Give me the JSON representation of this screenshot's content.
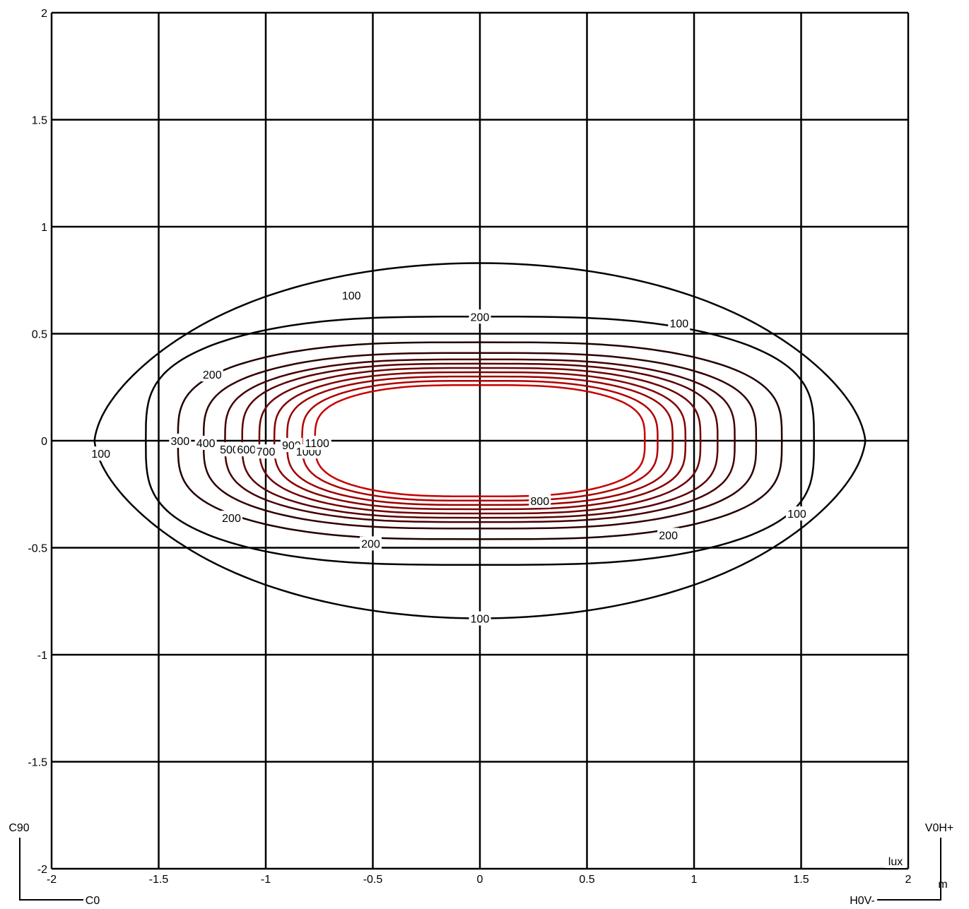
{
  "chart_data": {
    "type": "contour",
    "xlim": [
      -2,
      2
    ],
    "ylim": [
      -2,
      2
    ],
    "x_ticks": [
      -2,
      -1.5,
      -1,
      -0.5,
      0,
      0.5,
      1,
      1.5,
      2
    ],
    "y_ticks": [
      -2,
      -1.5,
      -1,
      -0.5,
      0,
      0.5,
      1,
      1.5,
      2
    ],
    "x_tick_labels": [
      "-2",
      "-1.5",
      "-1",
      "-0.5",
      "0",
      "0.5",
      "1",
      "1.5",
      "2"
    ],
    "y_tick_labels": [
      "-2",
      "-1.5",
      "-1",
      "-0.5",
      "0",
      "0.5",
      "1",
      "1.5",
      "2"
    ],
    "unit_label": "lux",
    "axis_unit": "m",
    "grid": true,
    "corner_labels": {
      "c90": "C90",
      "c0": "C0",
      "v0h": "V0H+",
      "h0v": "H0V-"
    },
    "contour_levels": [
      {
        "value": 100,
        "x_extent": 1.8,
        "y_extent": 0.83,
        "color": "#000000"
      },
      {
        "value": 200,
        "x_extent": 1.56,
        "y_extent": 0.58,
        "color": "#000000"
      },
      {
        "value": 300,
        "x_extent": 1.41,
        "y_extent": 0.46,
        "color": "#200000"
      },
      {
        "value": 400,
        "x_extent": 1.29,
        "y_extent": 0.41,
        "color": "#300000"
      },
      {
        "value": 500,
        "x_extent": 1.19,
        "y_extent": 0.38,
        "color": "#450000"
      },
      {
        "value": 600,
        "x_extent": 1.11,
        "y_extent": 0.36,
        "color": "#5a0000"
      },
      {
        "value": 700,
        "x_extent": 1.03,
        "y_extent": 0.34,
        "color": "#6e0000"
      },
      {
        "value": 800,
        "x_extent": 0.96,
        "y_extent": 0.32,
        "color": "#830000"
      },
      {
        "value": 900,
        "x_extent": 0.9,
        "y_extent": 0.3,
        "color": "#990000"
      },
      {
        "value": 1000,
        "x_extent": 0.83,
        "y_extent": 0.28,
        "color": "#b00000"
      },
      {
        "value": 1100,
        "x_extent": 0.77,
        "y_extent": 0.26,
        "color": "#c80000"
      }
    ],
    "contour_labels": [
      {
        "text": "100",
        "x": -0.6,
        "y": 0.68
      },
      {
        "text": "200",
        "x": 0.0,
        "y": 0.58
      },
      {
        "text": "100",
        "x": 0.93,
        "y": 0.55
      },
      {
        "text": "200",
        "x": -1.25,
        "y": 0.31
      },
      {
        "text": "300",
        "x": -1.4,
        "y": 0.0
      },
      {
        "text": "400",
        "x": -1.28,
        "y": -0.01
      },
      {
        "text": "500",
        "x": -1.17,
        "y": -0.04
      },
      {
        "text": "600",
        "x": -1.09,
        "y": -0.04
      },
      {
        "text": "700",
        "x": -1.0,
        "y": -0.05
      },
      {
        "text": "900",
        "x": -0.88,
        "y": -0.02
      },
      {
        "text": "1000",
        "x": -0.8,
        "y": -0.05
      },
      {
        "text": "1100",
        "x": -0.76,
        "y": -0.01
      },
      {
        "text": "100",
        "x": -1.77,
        "y": -0.06
      },
      {
        "text": "200",
        "x": -1.16,
        "y": -0.36
      },
      {
        "text": "200",
        "x": -0.51,
        "y": -0.48
      },
      {
        "text": "100",
        "x": 0.0,
        "y": -0.83
      },
      {
        "text": "800",
        "x": 0.28,
        "y": -0.28
      },
      {
        "text": "200",
        "x": 0.88,
        "y": -0.44
      },
      {
        "text": "100",
        "x": 1.48,
        "y": -0.34
      }
    ]
  }
}
